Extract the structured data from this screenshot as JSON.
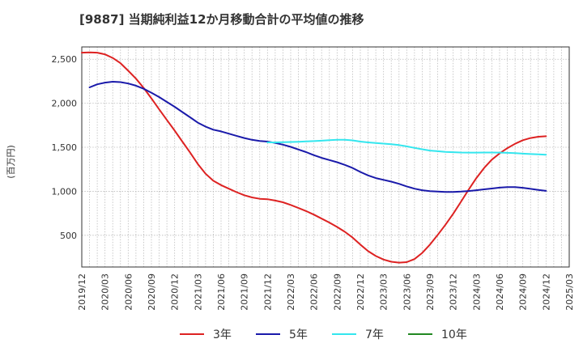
{
  "chart_data": {
    "type": "line",
    "title": "[9887]  当期純利益12か月移動合計の平均値の推移",
    "ylabel": "(百万円)",
    "xlabel": "",
    "ylim": [
      140,
      2640
    ],
    "yticks": [
      500,
      1000,
      1500,
      2000,
      2500
    ],
    "ytick_labels": [
      "500",
      "1,000",
      "1,500",
      "2,000",
      "2,500"
    ],
    "xticks": [
      "2019/12",
      "2020/03",
      "2020/06",
      "2020/09",
      "2020/12",
      "2021/03",
      "2021/06",
      "2021/09",
      "2021/12",
      "2022/03",
      "2022/06",
      "2022/09",
      "2022/12",
      "2023/03",
      "2023/06",
      "2023/09",
      "2023/12",
      "2024/03",
      "2024/06",
      "2024/09",
      "2024/12",
      "2025/03"
    ],
    "grid": true,
    "legend_position": "bottom",
    "series": [
      {
        "name": "3年",
        "color": "#dd2222",
        "points": [
          [
            "2019/12",
            2575
          ],
          [
            "2020/01",
            2578
          ],
          [
            "2020/02",
            2575
          ],
          [
            "2020/03",
            2555
          ],
          [
            "2020/04",
            2515
          ],
          [
            "2020/05",
            2455
          ],
          [
            "2020/06",
            2370
          ],
          [
            "2020/07",
            2280
          ],
          [
            "2020/08",
            2175
          ],
          [
            "2020/09",
            2055
          ],
          [
            "2020/10",
            1930
          ],
          [
            "2020/11",
            1810
          ],
          [
            "2020/12",
            1690
          ],
          [
            "2021/01",
            1565
          ],
          [
            "2021/02",
            1440
          ],
          [
            "2021/03",
            1310
          ],
          [
            "2021/04",
            1200
          ],
          [
            "2021/05",
            1120
          ],
          [
            "2021/06",
            1070
          ],
          [
            "2021/07",
            1030
          ],
          [
            "2021/08",
            990
          ],
          [
            "2021/09",
            955
          ],
          [
            "2021/10",
            930
          ],
          [
            "2021/11",
            915
          ],
          [
            "2021/12",
            910
          ],
          [
            "2022/01",
            895
          ],
          [
            "2022/02",
            875
          ],
          [
            "2022/03",
            845
          ],
          [
            "2022/04",
            810
          ],
          [
            "2022/05",
            775
          ],
          [
            "2022/06",
            735
          ],
          [
            "2022/07",
            690
          ],
          [
            "2022/08",
            645
          ],
          [
            "2022/09",
            595
          ],
          [
            "2022/10",
            540
          ],
          [
            "2022/11",
            475
          ],
          [
            "2022/12",
            395
          ],
          [
            "2023/01",
            320
          ],
          [
            "2023/02",
            265
          ],
          [
            "2023/03",
            225
          ],
          [
            "2023/04",
            200
          ],
          [
            "2023/05",
            190
          ],
          [
            "2023/06",
            195
          ],
          [
            "2023/07",
            230
          ],
          [
            "2023/08",
            300
          ],
          [
            "2023/09",
            395
          ],
          [
            "2023/10",
            505
          ],
          [
            "2023/11",
            620
          ],
          [
            "2023/12",
            745
          ],
          [
            "2024/01",
            880
          ],
          [
            "2024/02",
            1020
          ],
          [
            "2024/03",
            1150
          ],
          [
            "2024/04",
            1265
          ],
          [
            "2024/05",
            1360
          ],
          [
            "2024/06",
            1430
          ],
          [
            "2024/07",
            1490
          ],
          [
            "2024/08",
            1540
          ],
          [
            "2024/09",
            1580
          ],
          [
            "2024/10",
            1605
          ],
          [
            "2024/11",
            1620
          ],
          [
            "2024/12",
            1625
          ]
        ]
      },
      {
        "name": "5年",
        "color": "#1a1aaa",
        "points": [
          [
            "2020/01",
            2180
          ],
          [
            "2020/02",
            2215
          ],
          [
            "2020/03",
            2235
          ],
          [
            "2020/04",
            2245
          ],
          [
            "2020/05",
            2240
          ],
          [
            "2020/06",
            2225
          ],
          [
            "2020/07",
            2200
          ],
          [
            "2020/08",
            2165
          ],
          [
            "2020/09",
            2120
          ],
          [
            "2020/10",
            2070
          ],
          [
            "2020/11",
            2015
          ],
          [
            "2020/12",
            1960
          ],
          [
            "2021/01",
            1900
          ],
          [
            "2021/02",
            1840
          ],
          [
            "2021/03",
            1780
          ],
          [
            "2021/04",
            1735
          ],
          [
            "2021/05",
            1700
          ],
          [
            "2021/06",
            1680
          ],
          [
            "2021/07",
            1655
          ],
          [
            "2021/08",
            1630
          ],
          [
            "2021/09",
            1605
          ],
          [
            "2021/10",
            1585
          ],
          [
            "2021/11",
            1572
          ],
          [
            "2021/12",
            1565
          ],
          [
            "2022/01",
            1550
          ],
          [
            "2022/02",
            1530
          ],
          [
            "2022/03",
            1505
          ],
          [
            "2022/04",
            1475
          ],
          [
            "2022/05",
            1445
          ],
          [
            "2022/06",
            1410
          ],
          [
            "2022/07",
            1380
          ],
          [
            "2022/08",
            1355
          ],
          [
            "2022/09",
            1330
          ],
          [
            "2022/10",
            1300
          ],
          [
            "2022/11",
            1265
          ],
          [
            "2022/12",
            1220
          ],
          [
            "2023/01",
            1180
          ],
          [
            "2023/02",
            1150
          ],
          [
            "2023/03",
            1130
          ],
          [
            "2023/04",
            1110
          ],
          [
            "2023/05",
            1085
          ],
          [
            "2023/06",
            1055
          ],
          [
            "2023/07",
            1030
          ],
          [
            "2023/08",
            1012
          ],
          [
            "2023/09",
            1002
          ],
          [
            "2023/10",
            997
          ],
          [
            "2023/11",
            993
          ],
          [
            "2023/12",
            993
          ],
          [
            "2024/01",
            997
          ],
          [
            "2024/02",
            1003
          ],
          [
            "2024/03",
            1012
          ],
          [
            "2024/04",
            1022
          ],
          [
            "2024/05",
            1032
          ],
          [
            "2024/06",
            1042
          ],
          [
            "2024/07",
            1048
          ],
          [
            "2024/08",
            1048
          ],
          [
            "2024/09",
            1040
          ],
          [
            "2024/10",
            1028
          ],
          [
            "2024/11",
            1016
          ],
          [
            "2024/12",
            1005
          ]
        ]
      },
      {
        "name": "7年",
        "color": "#33e6ee",
        "points": [
          [
            "2021/12",
            1555
          ],
          [
            "2022/01",
            1555
          ],
          [
            "2022/02",
            1558
          ],
          [
            "2022/03",
            1560
          ],
          [
            "2022/04",
            1563
          ],
          [
            "2022/05",
            1567
          ],
          [
            "2022/06",
            1570
          ],
          [
            "2022/07",
            1575
          ],
          [
            "2022/08",
            1580
          ],
          [
            "2022/09",
            1585
          ],
          [
            "2022/10",
            1585
          ],
          [
            "2022/11",
            1578
          ],
          [
            "2022/12",
            1565
          ],
          [
            "2023/01",
            1555
          ],
          [
            "2023/02",
            1548
          ],
          [
            "2023/03",
            1542
          ],
          [
            "2023/04",
            1535
          ],
          [
            "2023/05",
            1525
          ],
          [
            "2023/06",
            1510
          ],
          [
            "2023/07",
            1493
          ],
          [
            "2023/08",
            1477
          ],
          [
            "2023/09",
            1463
          ],
          [
            "2023/10",
            1455
          ],
          [
            "2023/11",
            1448
          ],
          [
            "2023/12",
            1444
          ],
          [
            "2024/01",
            1441
          ],
          [
            "2024/02",
            1440
          ],
          [
            "2024/03",
            1440
          ],
          [
            "2024/04",
            1441
          ],
          [
            "2024/05",
            1441
          ],
          [
            "2024/06",
            1440
          ],
          [
            "2024/07",
            1437
          ],
          [
            "2024/08",
            1433
          ],
          [
            "2024/09",
            1428
          ],
          [
            "2024/10",
            1423
          ],
          [
            "2024/11",
            1419
          ],
          [
            "2024/12",
            1416
          ]
        ]
      },
      {
        "name": "10年",
        "color": "#228822",
        "points": []
      }
    ]
  }
}
